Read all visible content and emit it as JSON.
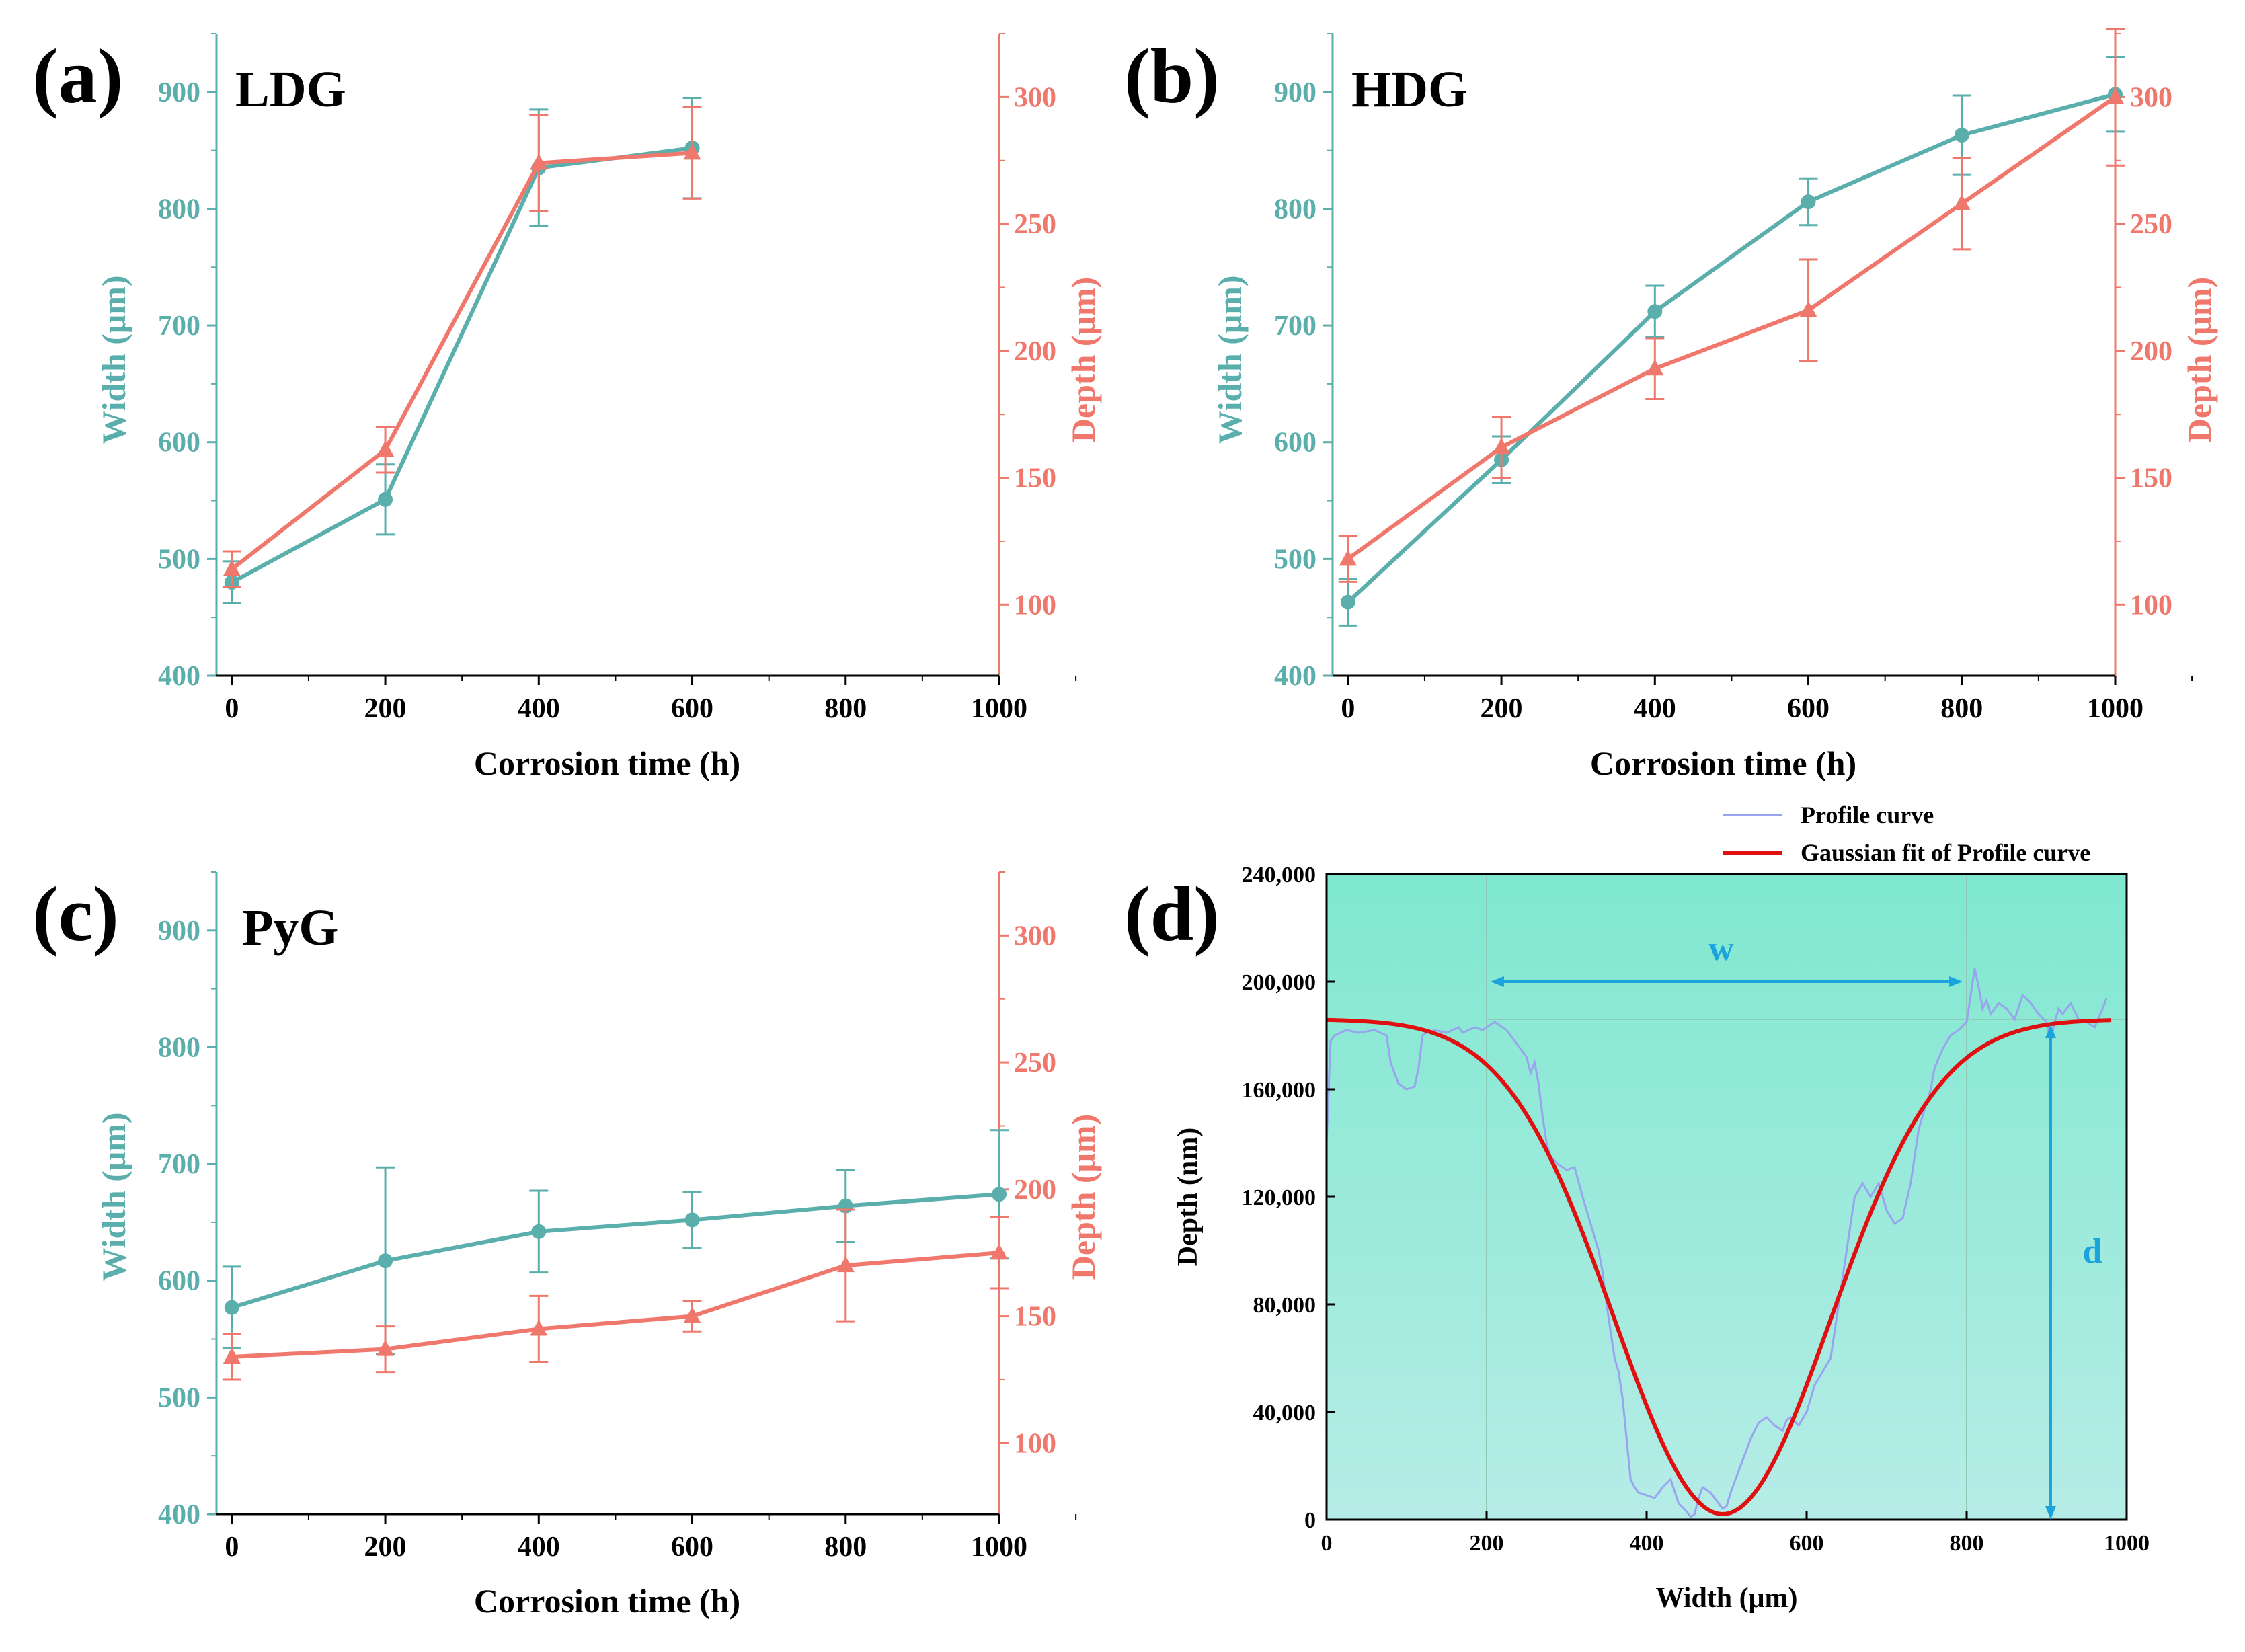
{
  "colors": {
    "width": "#5aaeab",
    "depth": "#f0776c",
    "profile": "#9aa4ee",
    "gauss": "#e01010",
    "annot": "#1aa3dc",
    "bg_top": "#7fe8cf",
    "bg_bottom": "#b6ece7"
  },
  "chart_data": [
    {
      "type": "line",
      "panel_label": "(a)",
      "title": "LDG",
      "xlabel": "Corrosion time (h)",
      "ylabel_left": "Width (μm)",
      "ylabel_right": "Depth (μm)",
      "xlim": [
        -20,
        1000
      ],
      "ylim_left": [
        400,
        950
      ],
      "ylim_right": [
        72,
        325
      ],
      "x_ticks": [
        "0",
        "200",
        "400",
        "600",
        "800",
        "1000"
      ],
      "y_ticks_left": [
        "400",
        "500",
        "600",
        "700",
        "800",
        "900"
      ],
      "y_ticks_right": [
        "100",
        "150",
        "200",
        "250",
        "300"
      ],
      "series": [
        {
          "name": "Width",
          "axis": "left",
          "marker": "circle",
          "x": [
            0,
            200,
            400,
            600
          ],
          "values": [
            480,
            551,
            835,
            852
          ],
          "err": [
            18,
            30,
            50,
            43
          ]
        },
        {
          "name": "Depth",
          "axis": "right",
          "marker": "triangle",
          "x": [
            0,
            200,
            400,
            600
          ],
          "values": [
            114,
            161,
            274,
            278
          ],
          "err": [
            7,
            9,
            19,
            18
          ]
        }
      ]
    },
    {
      "type": "line",
      "panel_label": "(b)",
      "title": "HDG",
      "xlabel": "Corrosion time (h)",
      "ylabel_left": "Width (μm)",
      "ylabel_right": "Depth (μm)",
      "xlim": [
        -20,
        1000
      ],
      "ylim_left": [
        400,
        950
      ],
      "ylim_right": [
        72,
        325
      ],
      "x_ticks": [
        "0",
        "200",
        "400",
        "600",
        "800",
        "1000"
      ],
      "y_ticks_left": [
        "400",
        "500",
        "600",
        "700",
        "800",
        "900"
      ],
      "y_ticks_right": [
        "100",
        "150",
        "200",
        "250",
        "300"
      ],
      "series": [
        {
          "name": "Width",
          "axis": "left",
          "marker": "circle",
          "x": [
            0,
            200,
            400,
            600,
            800,
            1000
          ],
          "values": [
            463,
            585,
            712,
            806,
            863,
            898
          ],
          "err": [
            20,
            20,
            22,
            20,
            34,
            32
          ]
        },
        {
          "name": "Depth",
          "axis": "right",
          "marker": "triangle",
          "x": [
            0,
            200,
            400,
            600,
            800,
            1000
          ],
          "values": [
            118,
            162,
            193,
            216,
            258,
            300
          ],
          "err": [
            9,
            12,
            12,
            20,
            18,
            27
          ]
        }
      ]
    },
    {
      "type": "line",
      "panel_label": "(c)",
      "title": "PyG",
      "xlabel": "Corrosion time (h)",
      "ylabel_left": "Width (μm)",
      "ylabel_right": "Depth (μm)",
      "xlim": [
        -20,
        1000
      ],
      "ylim_left": [
        400,
        950
      ],
      "ylim_right": [
        72,
        325
      ],
      "x_ticks": [
        "0",
        "200",
        "400",
        "600",
        "800",
        "1000"
      ],
      "y_ticks_left": [
        "400",
        "500",
        "600",
        "700",
        "800",
        "900"
      ],
      "y_ticks_right": [
        "100",
        "150",
        "200",
        "250",
        "300"
      ],
      "series": [
        {
          "name": "Width",
          "axis": "left",
          "marker": "circle",
          "x": [
            0,
            200,
            400,
            600,
            800,
            1000
          ],
          "values": [
            577,
            617,
            642,
            652,
            664,
            674
          ],
          "err": [
            35,
            80,
            35,
            24,
            31,
            55
          ]
        },
        {
          "name": "Depth",
          "axis": "right",
          "marker": "triangle",
          "x": [
            0,
            200,
            400,
            600,
            800,
            1000
          ],
          "values": [
            134,
            137,
            145,
            150,
            170,
            175
          ],
          "err": [
            9,
            9,
            13,
            6,
            22,
            14
          ]
        }
      ]
    },
    {
      "type": "line",
      "panel_label": "(d)",
      "xlabel": "Width (μm)",
      "ylabel": "Depth (nm)",
      "xlim": [
        0,
        1000
      ],
      "ylim": [
        0,
        240000
      ],
      "x_ticks": [
        "0",
        "200",
        "400",
        "600",
        "800",
        "1000"
      ],
      "y_ticks": [
        "0",
        "40,000",
        "80,000",
        "120,000",
        "160,000",
        "200,000",
        "240,000"
      ],
      "legend": [
        "Profile curve",
        "Gaussian fit of Profile curve"
      ],
      "annotations": {
        "w": "w",
        "d": "d"
      },
      "gaussian": {
        "baseline": 186000,
        "depth": 184000,
        "center": 495,
        "sigma": 135,
        "x_range": [
          0,
          980
        ]
      },
      "profile": {
        "x": [
          0,
          5,
          10,
          25,
          40,
          60,
          75,
          80,
          90,
          100,
          110,
          115,
          120,
          125,
          135,
          150,
          165,
          170,
          185,
          195,
          205,
          210,
          225,
          230,
          240,
          250,
          255,
          260,
          265,
          270,
          275,
          280,
          290,
          300,
          310,
          320,
          330,
          340,
          345,
          350,
          360,
          365,
          370,
          375,
          380,
          385,
          390,
          400,
          410,
          420,
          430,
          440,
          450,
          455,
          460,
          465,
          470,
          480,
          490,
          495,
          500,
          505,
          510,
          520,
          530,
          540,
          550,
          560,
          570,
          575,
          580,
          590,
          600,
          610,
          620,
          630,
          640,
          650,
          660,
          670,
          680,
          690,
          700,
          710,
          720,
          730,
          740,
          750,
          755,
          760,
          770,
          780,
          790,
          800,
          805,
          810,
          815,
          820,
          825,
          830,
          840,
          850,
          860,
          870,
          880,
          890,
          900,
          905,
          910,
          915,
          920,
          930,
          940,
          950,
          960,
          970,
          975
        ],
        "values": [
          140000,
          178000,
          180000,
          182000,
          181000,
          182000,
          180000,
          170000,
          162000,
          160000,
          161000,
          168000,
          180000,
          181000,
          182000,
          181000,
          183000,
          181000,
          183000,
          182000,
          184000,
          185000,
          182000,
          180000,
          176000,
          172000,
          166000,
          170000,
          162000,
          150000,
          140000,
          135000,
          132000,
          130000,
          131000,
          120000,
          110000,
          100000,
          92000,
          80000,
          60000,
          55000,
          45000,
          30000,
          15000,
          12000,
          10000,
          9000,
          8000,
          12000,
          15000,
          6000,
          3000,
          1000,
          2000,
          8000,
          12000,
          10000,
          6000,
          4000,
          5000,
          10000,
          14000,
          22000,
          30000,
          36000,
          38000,
          35000,
          33000,
          37000,
          38000,
          35000,
          40000,
          50000,
          55000,
          60000,
          80000,
          100000,
          120000,
          125000,
          120000,
          125000,
          115000,
          110000,
          112000,
          125000,
          145000,
          155000,
          160000,
          168000,
          175000,
          180000,
          182000,
          185000,
          195000,
          205000,
          198000,
          190000,
          193000,
          188000,
          192000,
          190000,
          186000,
          195000,
          192000,
          188000,
          185000,
          178000,
          185000,
          190000,
          188000,
          192000,
          186000,
          185000,
          183000,
          190000,
          194000
        ]
      }
    }
  ]
}
